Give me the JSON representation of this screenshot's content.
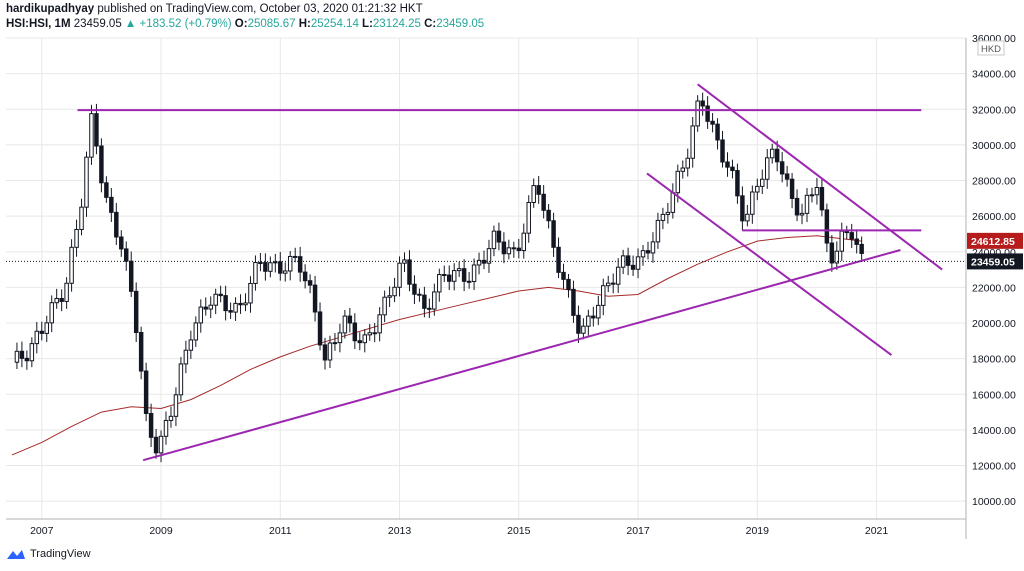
{
  "header": {
    "author": "hardikupadhyay",
    "published_text": "published on TradingView.com, October 03, 2020 01:21:32 HKT",
    "symbol": "HSI:HSI, 1M",
    "last": "23459.05",
    "change": "▲ +183.52 (+0.79%)",
    "o_label": "O:",
    "o_value": "25085.67",
    "h_label": "H:",
    "h_value": "25254.14",
    "l_label": "L:",
    "l_value": "23124.25",
    "c_label": "C:",
    "c_value": "23459.05"
  },
  "footer": {
    "brand": "TradingView",
    "logo_icon": "tradingview-logo-icon"
  },
  "colors": {
    "up": "#131722",
    "down": "#131722",
    "trendline": "#9c27b0",
    "ma": "#a52a2a",
    "grid": "#e8e8e8",
    "label_red": "#b71c1c",
    "label_dark": "#131722"
  },
  "chart_data": {
    "type": "candlestick",
    "timeframe": "1M",
    "currency": "HKD",
    "ylim": [
      9000,
      36000
    ],
    "y_ticks": [
      "36000.00",
      "34000.00",
      "32000.00",
      "30000.00",
      "28000.00",
      "26000.00",
      "24000.00",
      "22000.00",
      "20000.00",
      "18000.00",
      "16000.00",
      "14000.00",
      "12000.00",
      "10000.00"
    ],
    "y_tick_values": [
      36000,
      34000,
      32000,
      30000,
      28000,
      26000,
      24000,
      22000,
      20000,
      18000,
      16000,
      14000,
      12000,
      10000
    ],
    "x_ticks": [
      "2007",
      "2009",
      "2011",
      "2013",
      "2015",
      "2017",
      "2019",
      "2021"
    ],
    "x_tick_years": [
      2007,
      2009,
      2011,
      2013,
      2015,
      2017,
      2019,
      2021
    ],
    "xlim_year": [
      2006.4,
      2022.5
    ],
    "price_labels": [
      {
        "text": "24612.85",
        "value": 24612.85,
        "style": "red"
      },
      {
        "text": "23459.05",
        "value": 23459.05,
        "style": "dark"
      }
    ],
    "anchor_points": [
      [
        2006.5,
        17800
      ],
      [
        2006.8,
        18400
      ],
      [
        2007.1,
        20400
      ],
      [
        2007.4,
        22000
      ],
      [
        2007.65,
        26500
      ],
      [
        2007.85,
        31800
      ],
      [
        2008.05,
        27000
      ],
      [
        2008.3,
        24800
      ],
      [
        2008.55,
        21000
      ],
      [
        2008.75,
        14500
      ],
      [
        2008.95,
        12800
      ],
      [
        2009.2,
        15500
      ],
      [
        2009.5,
        19500
      ],
      [
        2009.85,
        21500
      ],
      [
        2010.3,
        20600
      ],
      [
        2010.65,
        23500
      ],
      [
        2010.95,
        23000
      ],
      [
        2011.3,
        23600
      ],
      [
        2011.55,
        21200
      ],
      [
        2011.75,
        17800
      ],
      [
        2012.05,
        20200
      ],
      [
        2012.4,
        18800
      ],
      [
        2012.7,
        20600
      ],
      [
        2013.05,
        23500
      ],
      [
        2013.4,
        20600
      ],
      [
        2013.75,
        22800
      ],
      [
        2014.2,
        22600
      ],
      [
        2014.6,
        24800
      ],
      [
        2014.95,
        23700
      ],
      [
        2015.3,
        28100
      ],
      [
        2015.55,
        24600
      ],
      [
        2015.8,
        21800
      ],
      [
        2016.05,
        19300
      ],
      [
        2016.3,
        21000
      ],
      [
        2016.7,
        23300
      ],
      [
        2017.05,
        23500
      ],
      [
        2017.4,
        25800
      ],
      [
        2017.8,
        29200
      ],
      [
        2018.05,
        32800
      ],
      [
        2018.3,
        30300
      ],
      [
        2018.55,
        28500
      ],
      [
        2018.8,
        25600
      ],
      [
        2019.0,
        27900
      ],
      [
        2019.3,
        29800
      ],
      [
        2019.55,
        27100
      ],
      [
        2019.75,
        26100
      ],
      [
        2020.0,
        28000
      ],
      [
        2020.2,
        23400
      ],
      [
        2020.4,
        24700
      ],
      [
        2020.6,
        25200
      ],
      [
        2020.75,
        23459
      ]
    ],
    "ma_points": [
      [
        2006.5,
        12600
      ],
      [
        2007.0,
        13300
      ],
      [
        2007.5,
        14200
      ],
      [
        2008.0,
        15000
      ],
      [
        2008.5,
        15300
      ],
      [
        2009.0,
        15200
      ],
      [
        2009.5,
        15700
      ],
      [
        2010.0,
        16500
      ],
      [
        2010.5,
        17400
      ],
      [
        2011.0,
        18100
      ],
      [
        2011.5,
        18700
      ],
      [
        2012.0,
        19200
      ],
      [
        2012.5,
        19700
      ],
      [
        2013.0,
        20200
      ],
      [
        2013.5,
        20600
      ],
      [
        2014.0,
        21000
      ],
      [
        2014.5,
        21400
      ],
      [
        2015.0,
        21800
      ],
      [
        2015.5,
        22000
      ],
      [
        2016.0,
        21800
      ],
      [
        2016.5,
        21500
      ],
      [
        2017.0,
        21600
      ],
      [
        2017.5,
        22500
      ],
      [
        2018.0,
        23300
      ],
      [
        2018.5,
        24000
      ],
      [
        2019.0,
        24600
      ],
      [
        2019.5,
        24800
      ],
      [
        2020.0,
        24900
      ],
      [
        2020.5,
        24700
      ],
      [
        2020.75,
        24600
      ]
    ],
    "trendlines": [
      {
        "name": "resistance-2007-2018",
        "points": [
          [
            2007.6,
            31950
          ],
          [
            2021.75,
            31950
          ]
        ]
      },
      {
        "name": "rising-support-2009",
        "points": [
          [
            2008.7,
            12300
          ],
          [
            2021.4,
            24100
          ]
        ]
      },
      {
        "name": "falling-channel-top",
        "points": [
          [
            2018.0,
            33400
          ],
          [
            2022.1,
            23000
          ]
        ]
      },
      {
        "name": "falling-channel-bottom",
        "points": [
          [
            2017.15,
            28400
          ],
          [
            2021.25,
            18200
          ]
        ]
      },
      {
        "name": "horizontal-25200",
        "points": [
          [
            2018.75,
            25200
          ],
          [
            2021.75,
            25200
          ]
        ]
      }
    ]
  }
}
